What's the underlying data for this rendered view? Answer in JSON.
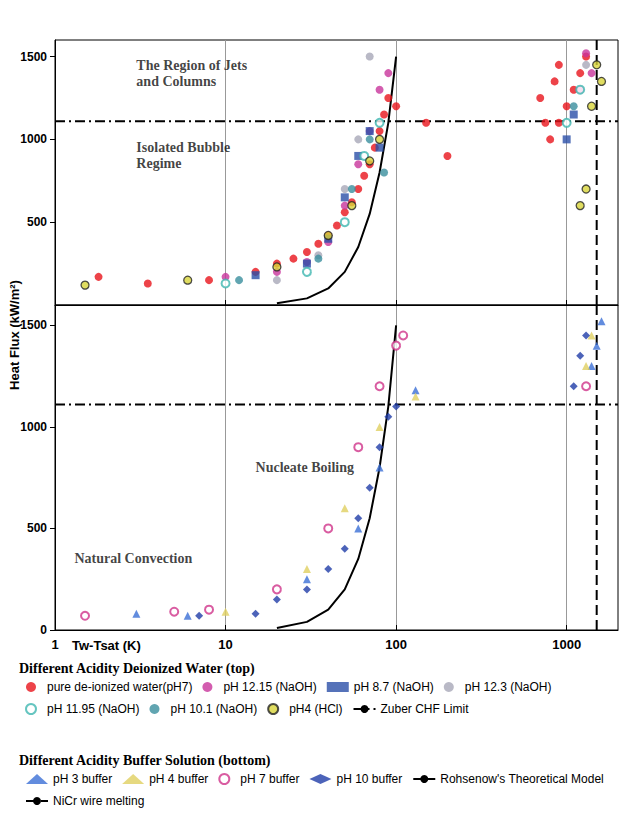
{
  "chart_data": [
    {
      "type": "scatter",
      "title": "Different Acidity Deionized Water (top)",
      "ylabel": "Heat Flux (kW/m²)",
      "log": "x",
      "grid": true,
      "legend": "bottom",
      "tick_labels": "y",
      "xlim": [
        1,
        2000
      ],
      "xticks": [
        1,
        10,
        100,
        1000
      ],
      "ylim": [
        0,
        1600
      ],
      "yticks": [
        500,
        1000,
        1500
      ],
      "annotations": [
        {
          "text": "The Region of Jets and Columns",
          "x": 3,
          "y": 1400
        },
        {
          "text": "Isolated Bubble Regime",
          "x": 3,
          "y": 900
        }
      ],
      "series": [
        {
          "name": "pure de-ionized water(pH7)",
          "color": "#e8141b",
          "marker": "circle",
          "x": [
            1.8,
            3.5,
            8,
            15,
            20,
            25,
            30,
            35,
            40,
            45,
            50,
            55,
            60,
            65,
            70,
            75,
            80,
            85,
            90,
            100,
            150,
            200,
            700,
            750,
            800,
            850,
            900,
            900,
            1000,
            1100,
            1200,
            1300
          ],
          "values": [
            170,
            130,
            150,
            200,
            250,
            280,
            320,
            370,
            420,
            480,
            560,
            620,
            700,
            780,
            850,
            950,
            1050,
            1150,
            1250,
            1200,
            1100,
            900,
            1250,
            1100,
            1000,
            1350,
            1450,
            1100,
            1200,
            1300,
            1400,
            1500
          ]
        },
        {
          "name": "pH 12.15 (NaOH)",
          "color": "#c8359b",
          "marker": "circle",
          "x": [
            10,
            20,
            30,
            40,
            50,
            60,
            70,
            80,
            90,
            1200,
            1300,
            1400
          ],
          "values": [
            170,
            200,
            260,
            380,
            600,
            850,
            1050,
            1300,
            1400,
            1300,
            1520,
            1400
          ]
        },
        {
          "name": "pH 8.7 (NaOH)",
          "color": "#2b4fa8",
          "marker": "square",
          "x": [
            15,
            30,
            40,
            50,
            60,
            70,
            80,
            1000,
            1100
          ],
          "values": [
            180,
            250,
            400,
            650,
            900,
            1050,
            950,
            1000,
            1150
          ]
        },
        {
          "name": "pH 12.3 (NaOH)",
          "color": "#a8a8b8",
          "marker": "circle",
          "x": [
            20,
            35,
            50,
            60,
            70,
            1300
          ],
          "values": [
            150,
            300,
            700,
            1000,
            1500,
            1450
          ]
        },
        {
          "name": "pH 11.95 (NaOH)",
          "color": "#3fb6b0",
          "marker": "open_circle",
          "x": [
            10,
            30,
            50,
            65,
            80,
            1000,
            1200
          ],
          "values": [
            130,
            200,
            500,
            900,
            1100,
            1100,
            1300
          ]
        },
        {
          "name": "pH 10.1 (NaOH)",
          "color": "#3a8f9e",
          "marker": "circle",
          "x": [
            12,
            35,
            55,
            70,
            85,
            1100
          ],
          "values": [
            150,
            280,
            700,
            1000,
            800,
            1200
          ]
        },
        {
          "name": "pH4 (HCl)",
          "color": "#d8d43a",
          "marker": "edged_circle",
          "x": [
            1.5,
            6,
            20,
            40,
            55,
            70,
            80,
            1200,
            1300,
            1400,
            1500,
            1600
          ],
          "values": [
            120,
            150,
            230,
            420,
            600,
            870,
            1000,
            600,
            700,
            1200,
            1450,
            1350
          ]
        },
        {
          "name": "Zuber CHF Limit",
          "type": "line",
          "color": "#000000",
          "line_style": "dashdot",
          "x": [
            1,
            2000
          ],
          "values": [
            1110,
            1110
          ]
        }
      ]
    },
    {
      "type": "scatter",
      "title": "Different Acidity Buffer Solution (bottom)",
      "xlabel": "Tw-Tsat (K)",
      "log": "x",
      "grid": true,
      "legend": "bottom",
      "xlim": [
        1,
        2000
      ],
      "xticks": [
        1,
        10,
        100,
        1000
      ],
      "ylim": [
        0,
        1600
      ],
      "yticks": [
        0,
        500,
        1000,
        1500
      ],
      "annotations": [
        {
          "text": "Nucleate Boiling",
          "x": 15,
          "y": 800
        },
        {
          "text": "Natural Convection",
          "x": 1.3,
          "y": 350
        }
      ],
      "series": [
        {
          "name": "pH 3 buffer",
          "color": "#3b6fd6",
          "marker": "triangle",
          "x": [
            3,
            6,
            30,
            60,
            80,
            130,
            1400,
            1500,
            1600
          ],
          "values": [
            80,
            70,
            250,
            500,
            800,
            1180,
            1300,
            1400,
            1520
          ]
        },
        {
          "name": "pH 4 buffer",
          "color": "#e0d060",
          "marker": "triangle",
          "x": [
            10,
            30,
            50,
            80,
            130,
            1300,
            1400
          ],
          "values": [
            90,
            300,
            600,
            1000,
            1150,
            1300,
            1450
          ]
        },
        {
          "name": "pH 7 buffer",
          "color": "#d0338a",
          "marker": "open_circle",
          "x": [
            1.5,
            5,
            8,
            20,
            40,
            60,
            80,
            100,
            110,
            1300
          ],
          "values": [
            70,
            90,
            100,
            200,
            500,
            900,
            1200,
            1400,
            1450,
            1200
          ]
        },
        {
          "name": "pH 10 buffer",
          "color": "#1f3ca8",
          "marker": "diamond",
          "x": [
            7,
            15,
            20,
            30,
            40,
            50,
            60,
            70,
            80,
            90,
            100,
            1100,
            1200,
            1300
          ],
          "values": [
            70,
            80,
            150,
            200,
            300,
            400,
            550,
            700,
            900,
            1050,
            1100,
            1200,
            1350,
            1450
          ]
        },
        {
          "name": "Rohsenow's Theoretical Model",
          "type": "line",
          "color": "#000000",
          "line_style": "solid",
          "x": [
            20,
            30,
            40,
            50,
            60,
            70,
            80,
            90,
            100
          ],
          "values": [
            10,
            40,
            100,
            200,
            350,
            550,
            800,
            1100,
            1500
          ]
        },
        {
          "name": "NiCr wire melting",
          "type": "line",
          "color": "#000000",
          "line_style": "dashed",
          "x": [
            1500,
            1500
          ],
          "values": [
            0,
            1600
          ]
        }
      ]
    }
  ]
}
